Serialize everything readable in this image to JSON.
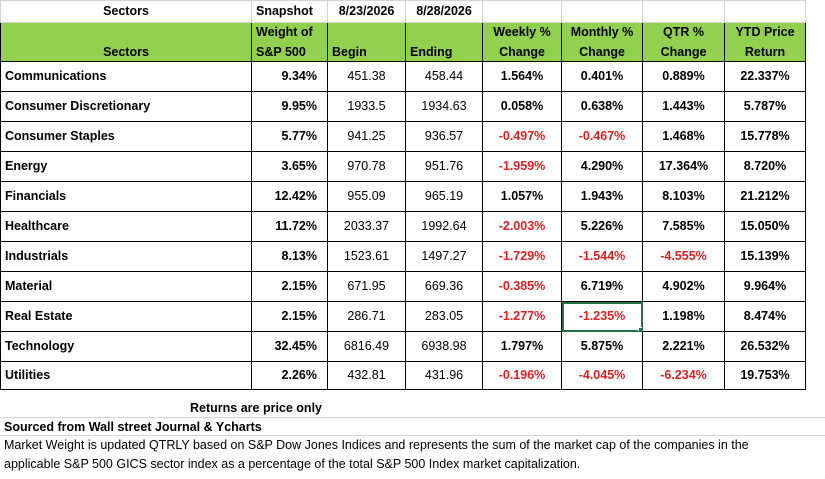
{
  "top_row": {
    "sectors_label": "Sectors",
    "snapshot_label": "Snapshot",
    "begin_date": "8/23/2026",
    "end_date": "8/28/2026"
  },
  "header": {
    "sectors": "Sectors",
    "weight_line1": "Weight of",
    "weight_line2": "S&P 500",
    "begin": "Begin",
    "ending": "Ending",
    "weekly_line1": "Weekly %",
    "weekly_line2": "Change",
    "monthly_line1": "Monthly %",
    "monthly_line2": "Change",
    "qtr_line1": "QTR %",
    "qtr_line2": "Change",
    "ytd_line1": "YTD Price",
    "ytd_line2": "Return"
  },
  "rows": [
    {
      "sector": "Communications",
      "weight": "9.34%",
      "begin": "451.38",
      "ending": "458.44",
      "weekly": "1.564%",
      "monthly": "0.401%",
      "qtr": "0.889%",
      "ytd": "22.337%"
    },
    {
      "sector": "Consumer Discretionary",
      "weight": "9.95%",
      "begin": "1933.5",
      "ending": "1934.63",
      "weekly": "0.058%",
      "monthly": "0.638%",
      "qtr": "1.443%",
      "ytd": "5.787%"
    },
    {
      "sector": "Consumer Staples",
      "weight": "5.77%",
      "begin": "941.25",
      "ending": "936.57",
      "weekly": "-0.497%",
      "monthly": "-0.467%",
      "qtr": "1.468%",
      "ytd": "15.778%"
    },
    {
      "sector": "Energy",
      "weight": "3.65%",
      "begin": "970.78",
      "ending": "951.76",
      "weekly": "-1.959%",
      "monthly": "4.290%",
      "qtr": "17.364%",
      "ytd": "8.720%"
    },
    {
      "sector": "Financials",
      "weight": "12.42%",
      "begin": "955.09",
      "ending": "965.19",
      "weekly": "1.057%",
      "monthly": "1.943%",
      "qtr": "8.103%",
      "ytd": "21.212%"
    },
    {
      "sector": "Healthcare",
      "weight": "11.72%",
      "begin": "2033.37",
      "ending": "1992.64",
      "weekly": "-2.003%",
      "monthly": "5.226%",
      "qtr": "7.585%",
      "ytd": "15.050%"
    },
    {
      "sector": "Industrials",
      "weight": "8.13%",
      "begin": "1523.61",
      "ending": "1497.27",
      "weekly": "-1.729%",
      "monthly": "-1.544%",
      "qtr": "-4.555%",
      "ytd": "15.139%"
    },
    {
      "sector": "Material",
      "weight": "2.15%",
      "begin": "671.95",
      "ending": "669.36",
      "weekly": "-0.385%",
      "monthly": "6.719%",
      "qtr": "4.902%",
      "ytd": "9.964%"
    },
    {
      "sector": "Real Estate",
      "weight": "2.15%",
      "begin": "286.71",
      "ending": "283.05",
      "weekly": "-1.277%",
      "monthly": "-1.235%",
      "qtr": "1.198%",
      "ytd": "8.474%"
    },
    {
      "sector": "Technology",
      "weight": "32.45%",
      "begin": "6816.49",
      "ending": "6938.98",
      "weekly": "1.797%",
      "monthly": "5.875%",
      "qtr": "2.221%",
      "ytd": "26.532%"
    },
    {
      "sector": "Utilities",
      "weight": "2.26%",
      "begin": "432.81",
      "ending": "431.96",
      "weekly": "-0.196%",
      "monthly": "-4.045%",
      "qtr": "-6.234%",
      "ytd": "19.753%"
    }
  ],
  "notes": {
    "returns_note": "Returns are price only",
    "source_note": "Sourced from Wall street Journal & Ycharts",
    "weight_note_line1": "Market Weight is updated QTRLY based on S&P Dow Jones Indices and represents the sum of the market cap of the companies in the",
    "weight_note_line2": "applicable S&P 500 GICS sector index as a percentage of the total S&P 500 Index market capitalization."
  },
  "colors": {
    "header_fill": "#92d050",
    "negative_text": "#e02020",
    "selection_border": "#217346",
    "gridline": "#d4d4d4"
  },
  "selected_cell": {
    "row": "Real Estate",
    "column": "Monthly % Change"
  }
}
